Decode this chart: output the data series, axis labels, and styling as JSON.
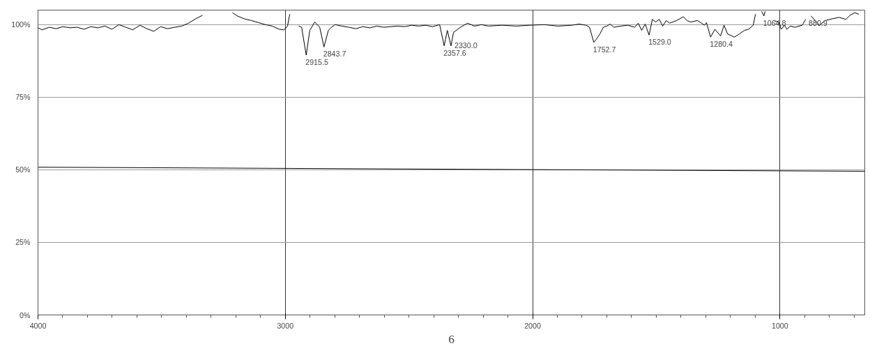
{
  "chart_data": {
    "type": "line",
    "xlim": [
      4000,
      657
    ],
    "ylim": [
      0,
      105
    ],
    "xticks": [
      4000,
      {
        "value": 3900,
        "label": null
      },
      {
        "value": 3800,
        "label": null
      },
      {
        "value": 3700,
        "label": null
      },
      {
        "value": 3600,
        "label": null
      },
      {
        "value": 3500,
        "label": null
      },
      {
        "value": 3400,
        "label": null
      },
      {
        "value": 3300,
        "label": null
      },
      {
        "value": 3200,
        "label": null
      },
      {
        "value": 3100,
        "label": null
      },
      3000,
      {
        "value": 2900,
        "label": null
      },
      {
        "value": 2800,
        "label": null
      },
      {
        "value": 2700,
        "label": null
      },
      {
        "value": 2600,
        "label": null
      },
      {
        "value": 2500,
        "label": null
      },
      {
        "value": 2400,
        "label": null
      },
      {
        "value": 2300,
        "label": null
      },
      {
        "value": 2200,
        "label": null
      },
      {
        "value": 2100,
        "label": null
      },
      2000,
      {
        "value": 1900,
        "label": null
      },
      {
        "value": 1800,
        "label": null
      },
      {
        "value": 1700,
        "label": null
      },
      {
        "value": 1600,
        "label": null
      },
      {
        "value": 1500,
        "label": null
      },
      {
        "value": 1400,
        "label": null
      },
      {
        "value": 1300,
        "label": null
      },
      {
        "value": 1200,
        "label": null
      },
      {
        "value": 1100,
        "label": null
      },
      1000,
      {
        "value": 900,
        "label": null
      },
      {
        "value": 800,
        "label": null
      },
      {
        "value": 700,
        "label": null
      }
    ],
    "yticks": [
      {
        "value": 0,
        "label": "0%"
      },
      {
        "value": 25,
        "label": "25%"
      },
      {
        "value": 50,
        "label": "50%"
      },
      {
        "value": 75,
        "label": "75%"
      },
      {
        "value": 100,
        "label": "100%"
      }
    ],
    "grid": true,
    "marker": "none",
    "line_style": "solid",
    "series": [
      {
        "color": "#000000",
        "x": [
          4000,
          3983,
          3955,
          3927,
          3899,
          3870,
          3842,
          3814,
          3786,
          3758,
          3729,
          3701,
          3673,
          3645,
          3617,
          3588,
          3560,
          3532,
          3504,
          3476,
          3447,
          3419,
          3391,
          3363,
          3335,
          3312,
          3260,
          3214,
          3194,
          3166,
          3137,
          3109,
          3081,
          3053,
          3025,
          3005,
          2991,
          2982,
          2974,
          2968,
          2963,
          2946,
          2934,
          2915.5,
          2901,
          2881,
          2861,
          2843.7,
          2826,
          2813,
          2799,
          2771,
          2743,
          2715,
          2686,
          2658,
          2630,
          2602,
          2574,
          2545,
          2517,
          2489,
          2461,
          2433,
          2404,
          2376,
          2357.6,
          2345,
          2330,
          2320,
          2292,
          2263,
          2235,
          2207,
          2179,
          2123,
          2066,
          2010,
          1953,
          1897,
          1841,
          1812,
          1784,
          1770,
          1752.7,
          1742,
          1728,
          1714,
          1700,
          1686,
          1672,
          1643,
          1615,
          1587,
          1573,
          1559,
          1545,
          1529,
          1516,
          1502,
          1488,
          1474,
          1460,
          1446,
          1418,
          1390,
          1376,
          1361,
          1333,
          1305,
          1297,
          1280.4,
          1263,
          1240,
          1226,
          1212,
          1184,
          1164,
          1144,
          1127,
          1108,
          1099,
          1091,
          1082,
          1074,
          1064.8,
          1060,
          1045,
          1032,
          1023,
          1003,
          995,
          981,
          972,
          958,
          939,
          910,
          896,
          891,
          884,
          877,
          874,
          854,
          840,
          817,
          789,
          761,
          733,
          717,
          697,
          681
        ],
        "values": [
          98.9,
          98.2,
          99.1,
          98.6,
          99.3,
          98.9,
          99.1,
          98.4,
          99.3,
          98.9,
          99.5,
          98.4,
          100.0,
          99.1,
          98.2,
          99.8,
          98.6,
          97.7,
          99.3,
          98.6,
          99.1,
          99.5,
          100.5,
          102.0,
          103.2,
          null,
          null,
          104.1,
          103.0,
          102.0,
          101.4,
          100.7,
          100.0,
          99.5,
          98.4,
          98.2,
          99.5,
          103.6,
          null,
          null,
          null,
          99.5,
          99.1,
          89.5,
          98.0,
          100.9,
          99.1,
          92.3,
          98.0,
          99.1,
          100.0,
          99.5,
          99.1,
          98.6,
          99.3,
          98.9,
          99.5,
          99.1,
          99.3,
          99.5,
          99.3,
          99.8,
          99.5,
          99.8,
          99.3,
          100.0,
          92.7,
          98.0,
          92.7,
          97.3,
          99.1,
          100.5,
          99.5,
          100.0,
          99.5,
          99.8,
          99.5,
          99.8,
          100.0,
          99.5,
          99.8,
          100.2,
          99.8,
          99.1,
          93.9,
          95.0,
          96.8,
          99.1,
          99.5,
          100.2,
          99.1,
          99.5,
          99.8,
          99.1,
          100.5,
          98.0,
          100.2,
          96.4,
          101.8,
          100.9,
          101.8,
          99.5,
          101.4,
          100.5,
          101.4,
          102.7,
          101.4,
          100.9,
          101.4,
          99.8,
          100.7,
          95.7,
          98.4,
          96.1,
          99.8,
          96.8,
          95.7,
          96.8,
          98.0,
          98.4,
          99.8,
          103.6,
          null,
          null,
          104.6,
          103.0,
          104.6,
          null,
          null,
          101.4,
          100.7,
          98.4,
          99.8,
          98.4,
          99.5,
          99.1,
          99.8,
          101.8,
          null,
          null,
          null,
          103.0,
          101.0,
          99.8,
          101.4,
          102.0,
          102.5,
          101.8,
          103.2,
          104.1,
          103.6
        ]
      },
      {
        "color": "#000000",
        "x": [
          4000,
          657
        ],
        "values": [
          50.9,
          49.5
        ]
      }
    ],
    "annotations": [
      {
        "text": "2915.5",
        "x": 2915.5,
        "y": 89.5
      },
      {
        "text": "2843.7",
        "x": 2843.7,
        "y": 92.3
      },
      {
        "text": "2357.6",
        "x": 2357.6,
        "y": 92.7
      },
      {
        "text": "2330.0",
        "x": 2330,
        "y": 92.7
      },
      {
        "text": "1752.7",
        "x": 1752.7,
        "y": 93.9
      },
      {
        "text": "1529.0",
        "x": 1529,
        "y": 96.4
      },
      {
        "text": "1280.4",
        "x": 1280.4,
        "y": 95.7
      },
      {
        "text": "1064.8",
        "x": 1064.8,
        "y": 103.0
      },
      {
        "text": "880.9",
        "x": 880.9,
        "y": 103.0
      },
      "6"
    ]
  }
}
